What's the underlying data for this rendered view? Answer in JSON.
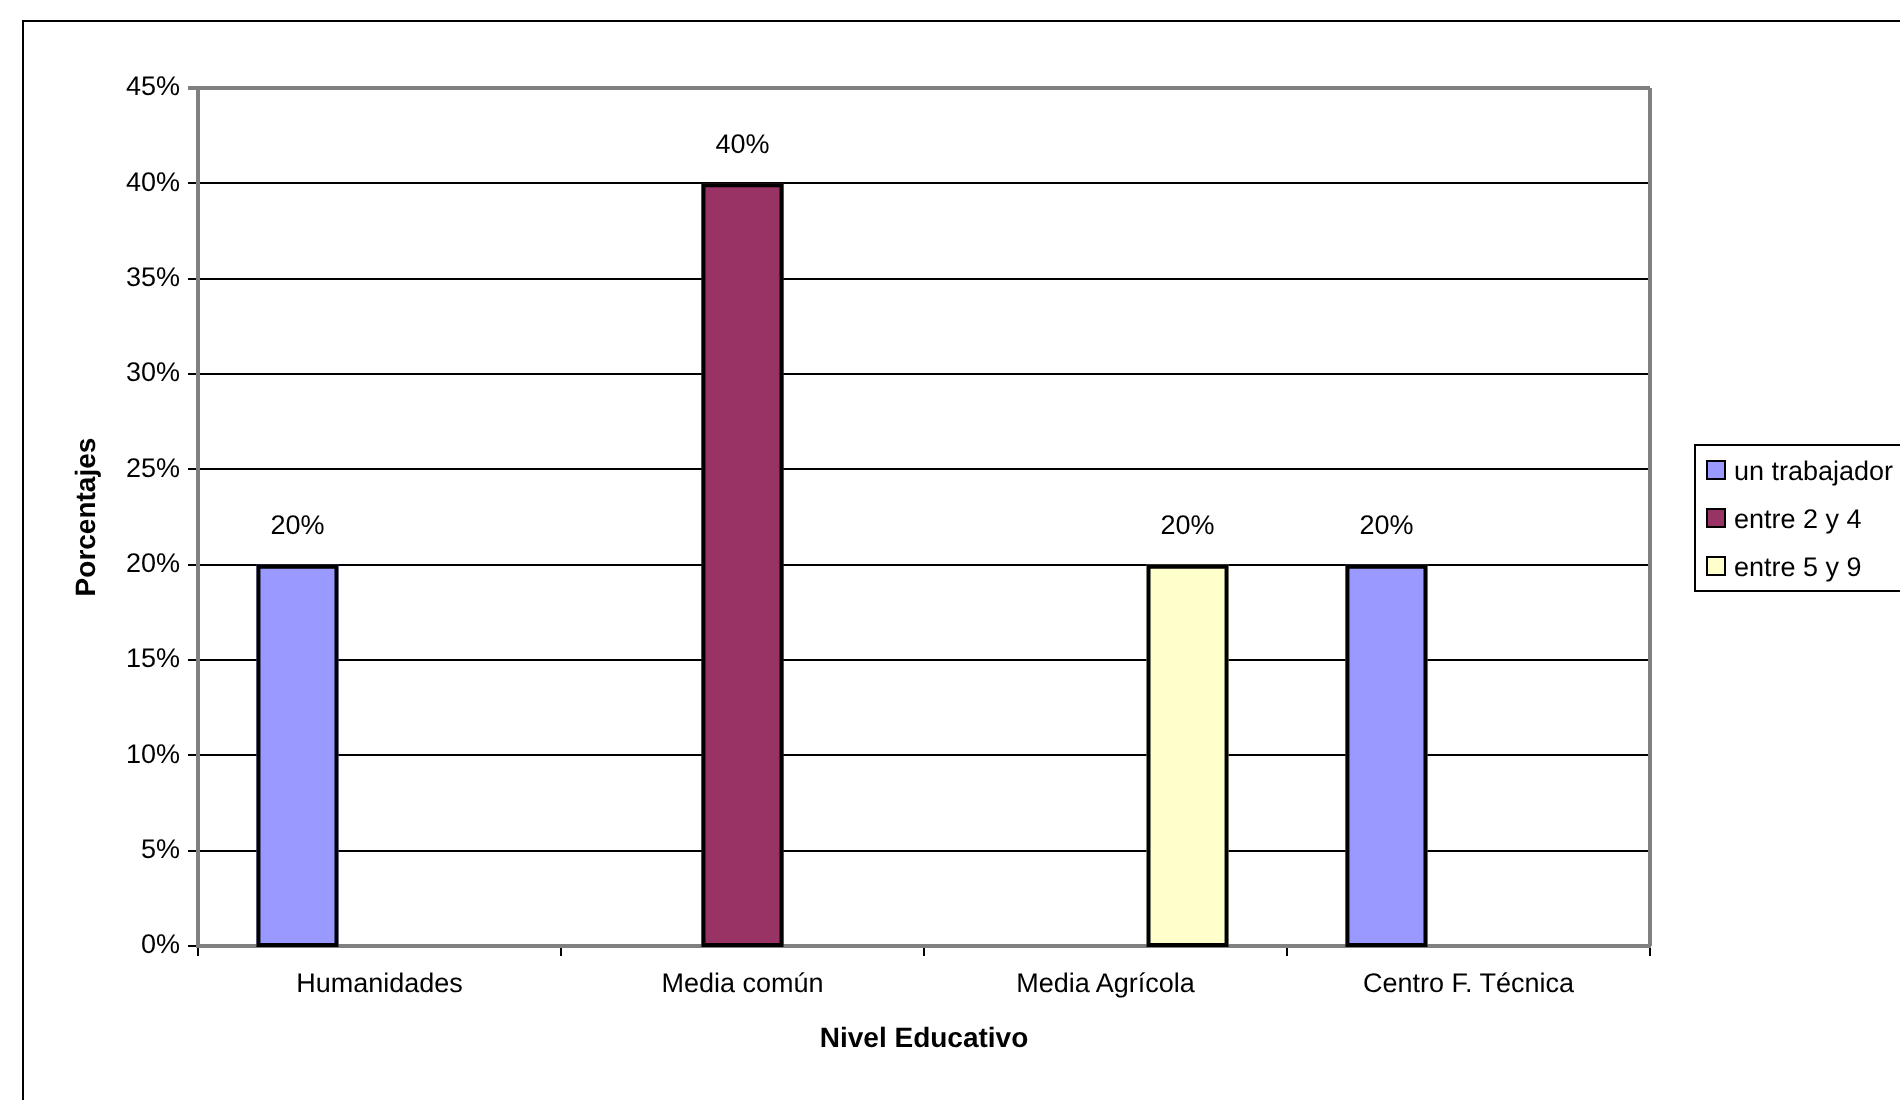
{
  "chart_data": {
    "type": "bar",
    "xlabel": "Nivel Educativo",
    "ylabel": "Porcentajes",
    "categories": [
      "Humanidades",
      "Media común",
      "Media Agrícola",
      "Centro F. Técnica"
    ],
    "series": [
      {
        "name": "un trabajador",
        "color": "#9999ff",
        "values": [
          20,
          null,
          null,
          20
        ],
        "value_labels": [
          "20%",
          null,
          null,
          "20%"
        ]
      },
      {
        "name": "entre 2 y 4",
        "color": "#993366",
        "values": [
          null,
          40,
          null,
          null
        ],
        "value_labels": [
          null,
          "40%",
          null,
          null
        ]
      },
      {
        "name": "entre 5 y 9",
        "color": "#ffffcc",
        "values": [
          null,
          null,
          20,
          null
        ],
        "value_labels": [
          null,
          null,
          "20%",
          null
        ]
      }
    ],
    "ylim": [
      0,
      45
    ],
    "yticks": [
      {
        "value": 0,
        "label": "0%"
      },
      {
        "value": 5,
        "label": "5%"
      },
      {
        "value": 10,
        "label": "10%"
      },
      {
        "value": 15,
        "label": "15%"
      },
      {
        "value": 20,
        "label": "20%"
      },
      {
        "value": 25,
        "label": "25%"
      },
      {
        "value": 30,
        "label": "30%"
      },
      {
        "value": 35,
        "label": "35%"
      },
      {
        "value": 40,
        "label": "40%"
      },
      {
        "value": 45,
        "label": "45%"
      }
    ],
    "grid": "y",
    "legend": "right"
  }
}
